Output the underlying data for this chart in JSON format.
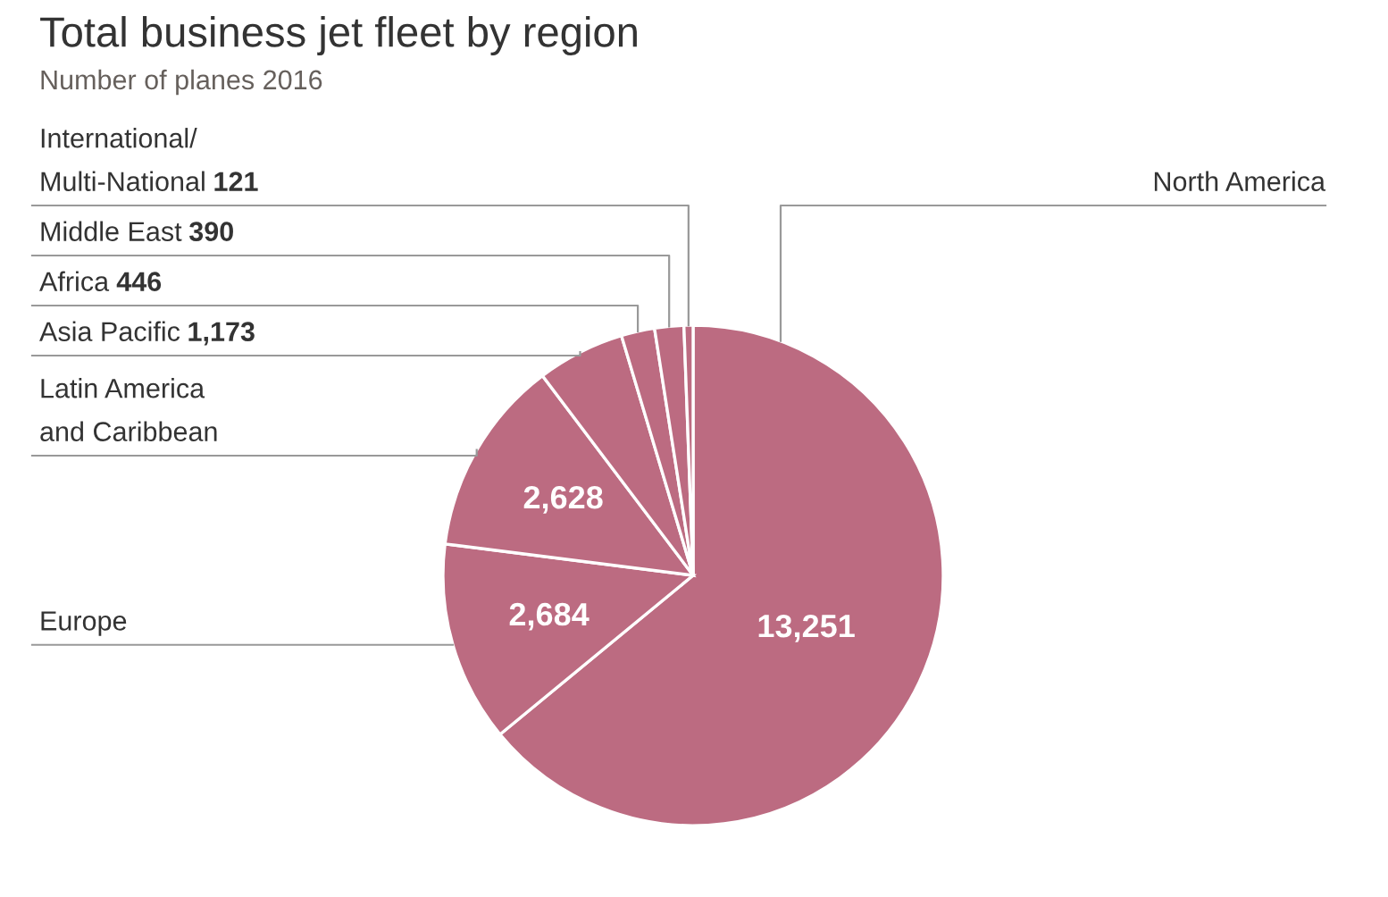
{
  "chart_data": {
    "type": "pie",
    "title": "Total business jet fleet by region",
    "subtitle": "Number of planes 2016",
    "categories": [
      "North America",
      "Europe",
      "Latin America\nand Caribbean",
      "Asia Pacific",
      "Africa",
      "Middle East",
      "International/\nMulti-National"
    ],
    "values": [
      13251,
      2684,
      2628,
      1173,
      446,
      390,
      121
    ],
    "colors": [
      "#bc6b81",
      "#bc6b81",
      "#bc6b81",
      "#bc6b81",
      "#bc6b81",
      "#bc6b81",
      "#bc6b81"
    ],
    "value_labels": [
      "13,251",
      "2,684",
      "2,628",
      "1,173",
      "446",
      "390",
      "121"
    ]
  }
}
